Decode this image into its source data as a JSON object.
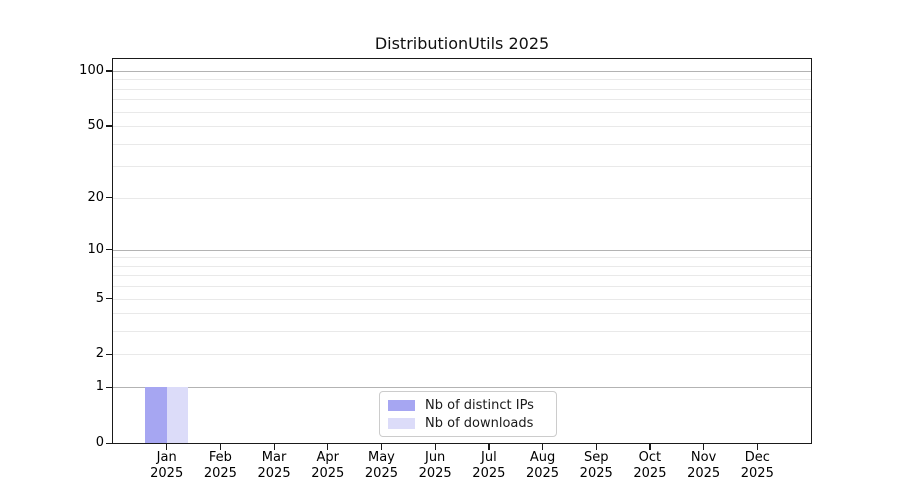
{
  "chart_data": {
    "type": "bar",
    "title": "DistributionUtils 2025",
    "categories": [
      "Jan",
      "Feb",
      "Mar",
      "Apr",
      "May",
      "Jun",
      "Jul",
      "Aug",
      "Sep",
      "Oct",
      "Nov",
      "Dec"
    ],
    "x_year_label": "2025",
    "series": [
      {
        "name": "Nb of distinct IPs",
        "color": "#a6a6f2",
        "values": [
          1,
          0,
          0,
          0,
          0,
          0,
          0,
          0,
          0,
          0,
          0,
          0
        ]
      },
      {
        "name": "Nb of downloads",
        "color": "#dcdcf9",
        "values": [
          1,
          0,
          0,
          0,
          0,
          0,
          0,
          0,
          0,
          0,
          0,
          0
        ]
      }
    ],
    "xlabel": "",
    "ylabel": "",
    "y_axis": {
      "scale": "log10(value+1)",
      "tick_values": [
        0,
        1,
        2,
        5,
        10,
        20,
        50,
        100
      ],
      "tick_labels": [
        "0",
        "1",
        "2",
        "5",
        "10",
        "20",
        "50",
        "100"
      ],
      "major_gridline_values": [
        1,
        10,
        100
      ],
      "minor_gridline_values": [
        2,
        3,
        4,
        5,
        6,
        7,
        8,
        9,
        20,
        30,
        40,
        50,
        60,
        70,
        80,
        90
      ],
      "ymax": 116
    },
    "legend": {
      "position": "lower center",
      "items": [
        "Nb of distinct IPs",
        "Nb of downloads"
      ]
    },
    "grid": "horizontal"
  },
  "colors": {
    "background": "#ffffff",
    "spine": "#1a1a1a",
    "grid_major": "#b3b3b3",
    "grid_minor": "#e9e9e9",
    "text": "#000000",
    "legend_border": "#cccccc",
    "bar_distinct_ips": "#a6a6f2",
    "bar_downloads": "#dcdcf9"
  }
}
